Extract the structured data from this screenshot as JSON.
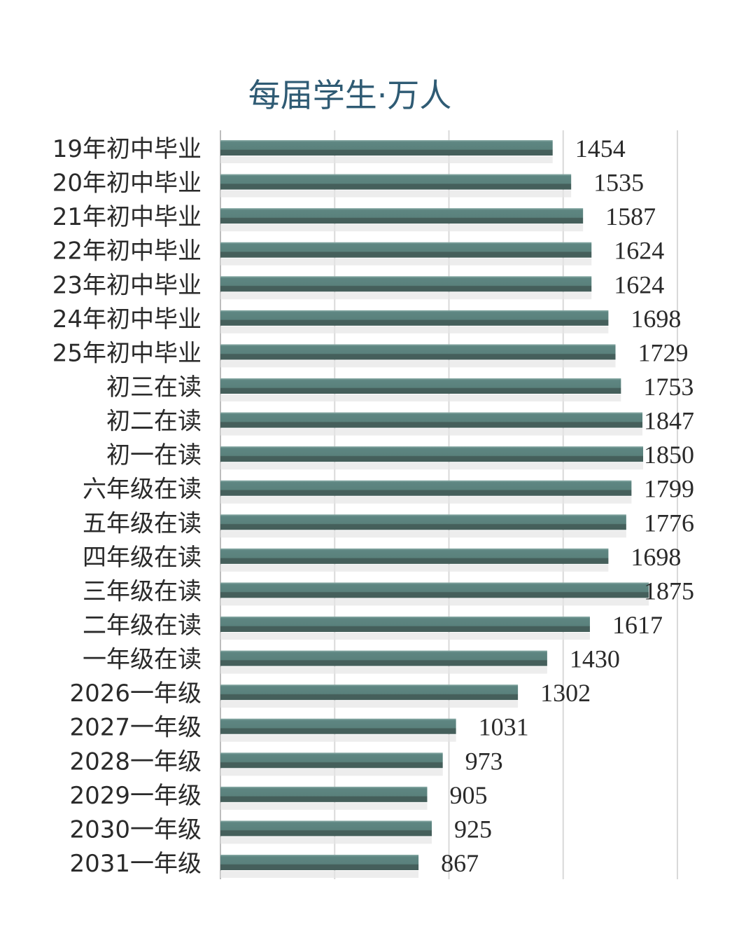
{
  "chart_data": {
    "type": "bar",
    "orientation": "horizontal",
    "title": "每届学生·万人",
    "categories": [
      "19年初中毕业",
      "20年初中毕业",
      "21年初中毕业",
      "22年初中毕业",
      "23年初中毕业",
      "24年初中毕业",
      "25年初中毕业",
      "初三在读",
      "初二在读",
      "初一在读",
      "六年级在读",
      "五年级在读",
      "四年级在读",
      "三年级在读",
      "二年级在读",
      "一年级在读",
      "2026一年级",
      "2027一年级",
      "2028一年级",
      "2029一年级",
      "2030一年级",
      "2031一年级"
    ],
    "values": [
      1454,
      1535,
      1587,
      1624,
      1624,
      1698,
      1729,
      1753,
      1847,
      1850,
      1799,
      1776,
      1698,
      1875,
      1617,
      1430,
      1302,
      1031,
      973,
      905,
      925,
      867
    ],
    "xlim": [
      0,
      2000
    ],
    "grid": true,
    "data_labels": true,
    "colors": {
      "bar_top": "#5e8682",
      "bar_bottom": "#455f5b",
      "title": "#2f5b74",
      "grid": "#d9d9d9"
    }
  }
}
